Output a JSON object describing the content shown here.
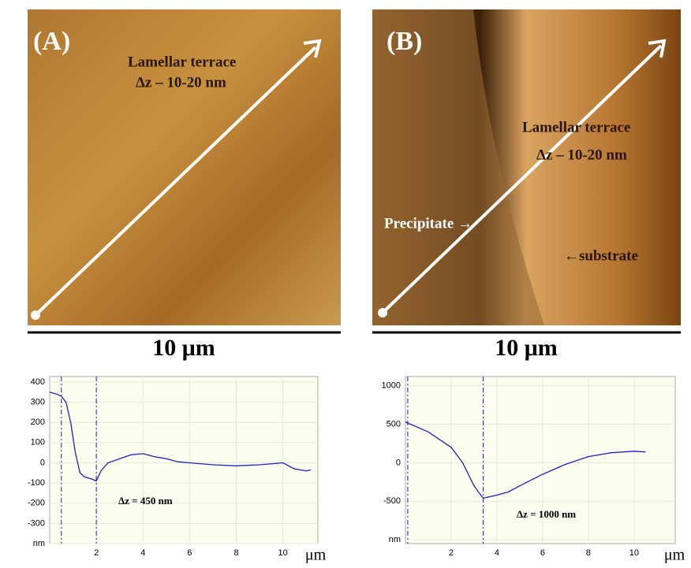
{
  "panels": [
    {
      "label": "(A)",
      "annotations": [
        "Lamellar terrace",
        "Δz – 10-20 nm"
      ],
      "scale_bar": "10 μm"
    },
    {
      "label": "(B)",
      "annotations": [
        "Lamellar terrace",
        "Δz – 10-20 nm",
        "Precipitate →",
        "←substrate"
      ],
      "scale_bar": "10 μm"
    }
  ],
  "chart_data": [
    {
      "type": "line",
      "x_label": "μm",
      "annotation": "Δz = 450 nm",
      "color": "#2020c0",
      "grid": true,
      "xlim": [
        0,
        11.5
      ],
      "ylim": [
        -400,
        427
      ],
      "xticks": [
        2,
        4,
        6,
        8,
        10
      ],
      "yticks": [
        400,
        300,
        200,
        100,
        0,
        -100,
        -200,
        -300,
        {
          "value": -400,
          "label": "nm"
        }
      ],
      "markers": [
        0.5,
        2
      ],
      "x": [
        0,
        0.3,
        0.5,
        0.7,
        0.9,
        1.1,
        1.3,
        1.5,
        1.8,
        2.0,
        2.2,
        2.5,
        3,
        3.5,
        4,
        4.5,
        5,
        5.5,
        6,
        7,
        8,
        9,
        10,
        10.5,
        11,
        11.2
      ],
      "values": [
        350,
        340,
        330,
        300,
        200,
        50,
        -50,
        -70,
        -80,
        -90,
        -40,
        0,
        20,
        40,
        45,
        30,
        20,
        5,
        0,
        -10,
        -15,
        -10,
        0,
        -30,
        -40,
        -35
      ]
    },
    {
      "type": "line",
      "x_label": "μm",
      "annotation": "Δz = 1000 nm",
      "color": "#2020c0",
      "grid": true,
      "xlim": [
        0,
        11.8
      ],
      "ylim": [
        -1050,
        1120
      ],
      "xticks": [
        2,
        4,
        6,
        8,
        10
      ],
      "yticks": [
        1000,
        500,
        0,
        -500,
        {
          "value": -1000,
          "label": "nm"
        }
      ],
      "markers": [
        0.1,
        3.4
      ],
      "x": [
        0,
        1,
        2,
        2.5,
        3,
        3.4,
        4,
        4.5,
        5,
        6,
        7,
        8,
        9,
        10,
        10.5
      ],
      "values": [
        530,
        400,
        200,
        0,
        -300,
        -460,
        -420,
        -380,
        -300,
        -150,
        -20,
        80,
        130,
        150,
        140
      ]
    }
  ]
}
